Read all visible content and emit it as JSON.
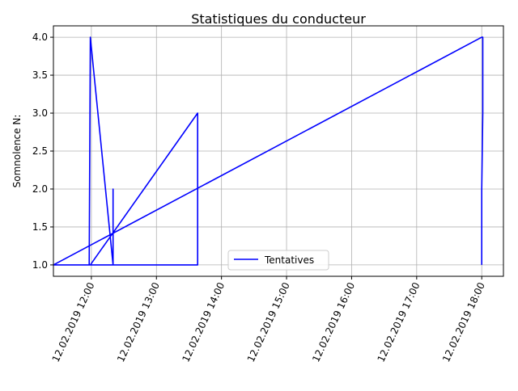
{
  "chart_data": {
    "type": "line",
    "title": "Statistiques du conducteur",
    "xlabel": "",
    "ylabel": "Somnolence N:",
    "x_axis_type": "time",
    "x_format": "DD.MM.YYYY HH:MM",
    "xlim": [
      "12.02.2019 11:25",
      "12.02.2019 18:20"
    ],
    "ylim": [
      0.85,
      4.15
    ],
    "x_ticks": [
      "12.02.2019 12:00",
      "12.02.2019 13:00",
      "12.02.2019 14:00",
      "12.02.2019 15:00",
      "12.02.2019 16:00",
      "12.02.2019 17:00",
      "12.02.2019 18:00"
    ],
    "y_ticks": [
      "1.0",
      "1.5",
      "2.0",
      "2.5",
      "3.0",
      "3.5",
      "4.0"
    ],
    "grid": true,
    "legend_position": "bottom-center",
    "series": [
      {
        "name": "Tentatives",
        "color": "#0000ff",
        "points": [
          {
            "x": "12.02.2019 11:25",
            "y": 1
          },
          {
            "x": "12.02.2019 11:58",
            "y": 1
          },
          {
            "x": "12.02.2019 11:59",
            "y": 4
          },
          {
            "x": "12.02.2019 12:20",
            "y": 1
          },
          {
            "x": "12.02.2019 12:20",
            "y": 2
          },
          {
            "x": "12.02.2019 12:20",
            "y": 1
          },
          {
            "x": "12.02.2019 11:59",
            "y": 1
          },
          {
            "x": "12.02.2019 13:38",
            "y": 3
          },
          {
            "x": "12.02.2019 13:38",
            "y": 1
          },
          {
            "x": "12.02.2019 11:25",
            "y": 1
          },
          {
            "x": "12.02.2019 18:00",
            "y": 4
          },
          {
            "x": "12.02.2019 18:01",
            "y": 4
          },
          {
            "x": "12.02.2019 18:01",
            "y": 3
          },
          {
            "x": "12.02.2019 18:00",
            "y": 2
          },
          {
            "x": "12.02.2019 18:00",
            "y": 1
          }
        ]
      }
    ]
  }
}
